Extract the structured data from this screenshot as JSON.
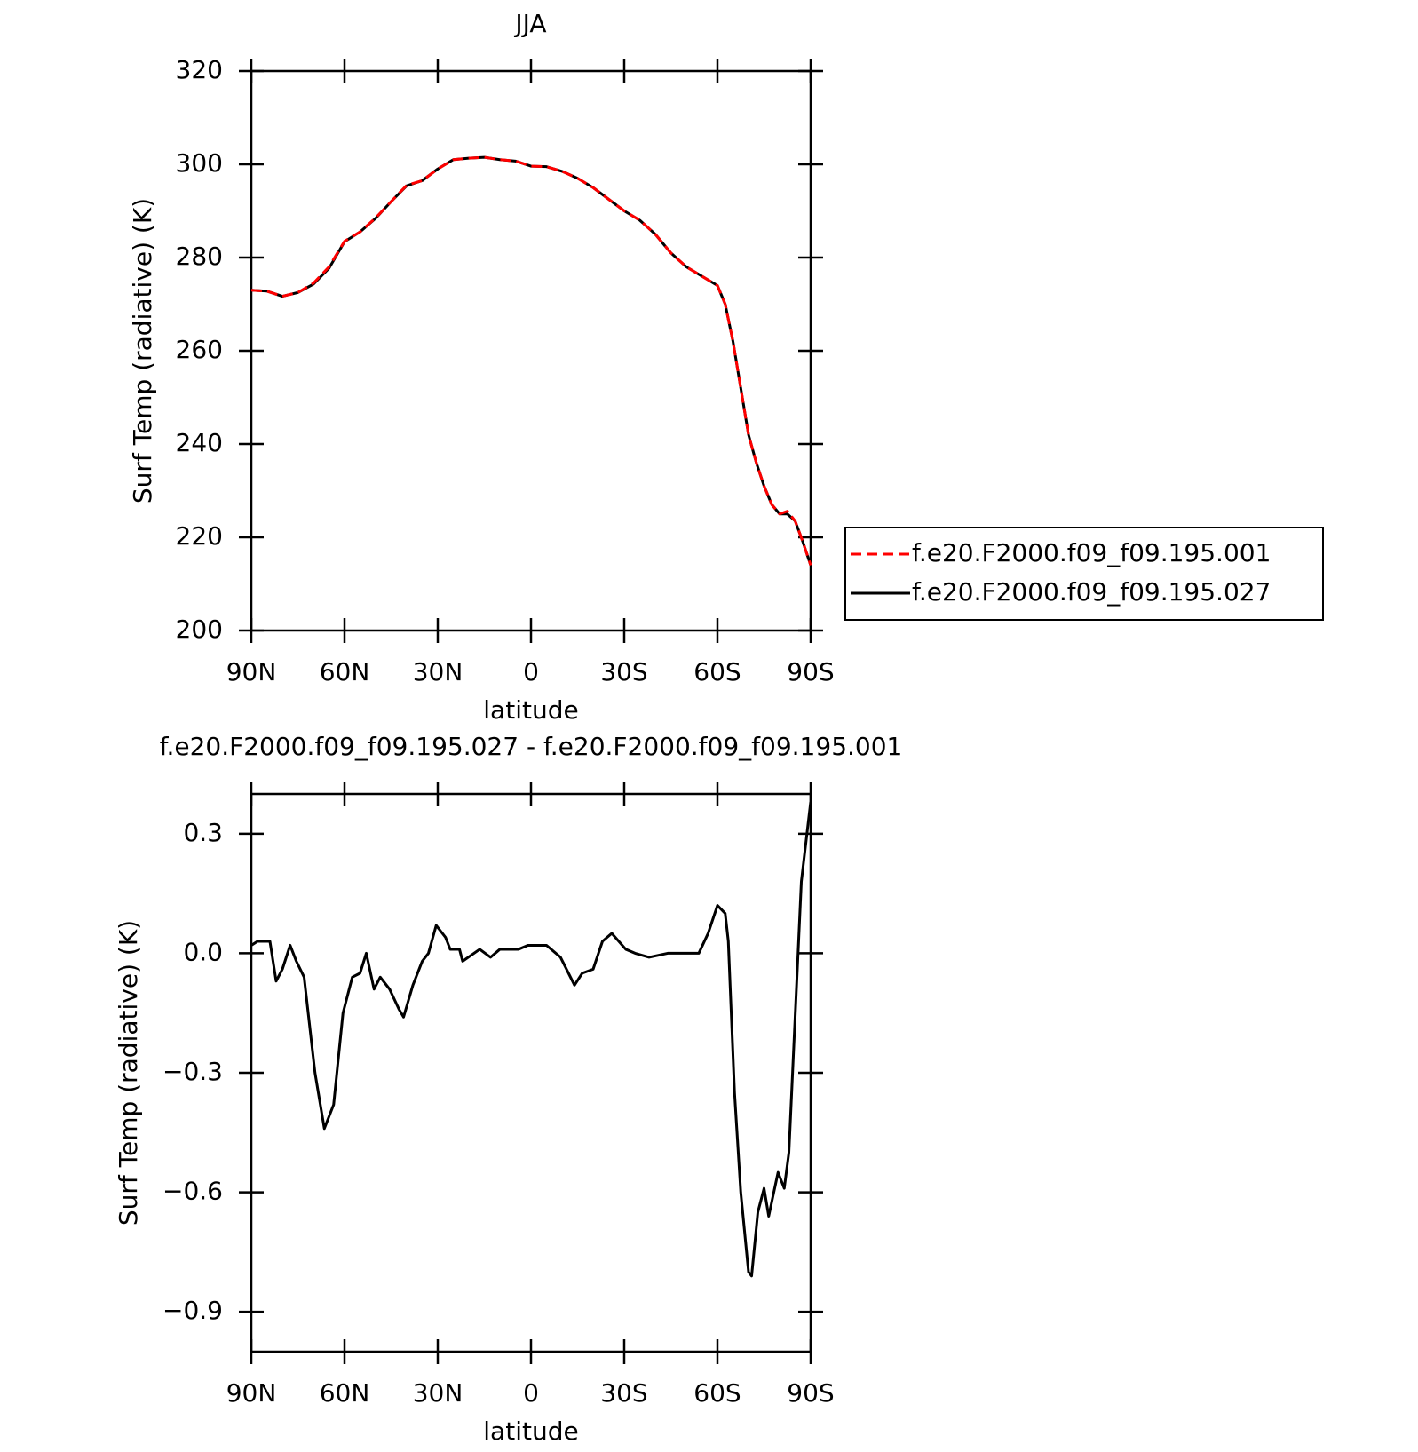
{
  "chart_data": [
    {
      "type": "line",
      "title": "JJA",
      "xlabel": "latitude",
      "ylabel": "Surf Temp (radiative) (K)",
      "x": [
        90,
        85,
        80,
        75,
        70,
        65,
        60,
        55,
        50,
        45,
        40,
        35,
        30,
        25,
        20,
        15,
        10,
        5,
        0,
        -5,
        -10,
        -15,
        -20,
        -25,
        -30,
        -35,
        -40,
        -45,
        -50,
        -55,
        -60,
        -62.5,
        -65,
        -67.5,
        -70,
        -72.5,
        -75,
        -77.5,
        -80,
        -82.5,
        -85,
        -87.5,
        -90
      ],
      "series": [
        {
          "name": "f.e20.F2000.f09_f09.195.001",
          "color": "#ff0000",
          "dash": "dashed",
          "values": [
            273,
            272.8,
            271.7,
            272.5,
            274.5,
            278,
            283.5,
            285.5,
            288.5,
            292,
            295.5,
            296.5,
            299,
            301,
            301.3,
            301.5,
            301,
            300.7,
            299.6,
            299.5,
            298.5,
            297,
            295,
            292.5,
            290,
            288,
            285,
            281,
            278,
            276,
            274,
            270,
            262,
            252,
            242,
            236,
            231,
            227,
            225,
            225.6,
            223.5,
            219,
            214
          ]
        },
        {
          "name": "f.e20.F2000.f09_f09.195.027",
          "color": "#000000",
          "dash": "solid",
          "values": [
            273,
            272.8,
            271.7,
            272.5,
            274.3,
            277.7,
            283.4,
            285.5,
            288.4,
            292,
            295.4,
            296.5,
            299,
            301,
            301.3,
            301.5,
            301,
            300.7,
            299.6,
            299.5,
            298.5,
            297,
            295,
            292.5,
            290,
            288,
            285,
            281,
            278,
            276,
            274,
            270,
            262,
            252,
            242,
            236,
            231,
            227,
            225,
            225,
            223.5,
            219,
            214
          ]
        }
      ],
      "xlim": [
        90,
        -90
      ],
      "xticks": [
        {
          "value": 90,
          "label": "90N"
        },
        {
          "value": 60,
          "label": "60N"
        },
        {
          "value": 30,
          "label": "30N"
        },
        0,
        {
          "value": -30,
          "label": "30S"
        },
        {
          "value": -60,
          "label": "60S"
        },
        {
          "value": -90,
          "label": "90S"
        }
      ],
      "ylim": [
        200,
        320
      ],
      "yticks": [
        200,
        220,
        240,
        260,
        280,
        300,
        320
      ],
      "legend": "right"
    },
    {
      "type": "line",
      "title": "f.e20.F2000.f09_f09.195.027 - f.e20.F2000.f09_f09.195.001",
      "xlabel": "latitude",
      "ylabel": "Surf Temp (radiative) (K)",
      "x": [
        90,
        88,
        84,
        82,
        80,
        77.5,
        75.5,
        73,
        69.5,
        66.5,
        63.5,
        60.5,
        57.5,
        55,
        53,
        50.5,
        48.5,
        45.5,
        42.5,
        41,
        38,
        35,
        33,
        30.5,
        27.5,
        26,
        23,
        22,
        16.5,
        13,
        10,
        4,
        1,
        -5,
        -9.5,
        -14,
        -16.5,
        -20,
        -23,
        -26,
        -30.5,
        -33.5,
        -38,
        -44,
        -50,
        -54,
        -57,
        -60,
        -62.5,
        -63.5,
        -65.5,
        -67.5,
        -70,
        -71,
        -73,
        -75,
        -76.5,
        -79.5,
        -81.5,
        -83,
        -87,
        -90
      ],
      "series": [
        {
          "color": "#000000",
          "dash": "solid",
          "values": [
            0.02,
            0.03,
            0.03,
            -0.07,
            -0.04,
            0.02,
            -0.02,
            -0.06,
            -0.3,
            -0.44,
            -0.38,
            -0.15,
            -0.06,
            -0.05,
            0.0,
            -0.09,
            -0.06,
            -0.09,
            -0.14,
            -0.16,
            -0.08,
            -0.02,
            0,
            0.07,
            0.04,
            0.01,
            0.01,
            -0.02,
            0.01,
            -0.01,
            0.01,
            0.01,
            0.02,
            0.02,
            -0.01,
            -0.08,
            -0.05,
            -0.04,
            0.03,
            0.05,
            0.01,
            0,
            -0.01,
            0,
            0,
            0,
            0.05,
            0.12,
            0.1,
            0.03,
            -0.35,
            -0.6,
            -0.8,
            -0.81,
            -0.65,
            -0.59,
            -0.66,
            -0.55,
            -0.59,
            -0.5,
            0.18,
            0.38
          ]
        }
      ],
      "xlim": [
        90,
        -90
      ],
      "xticks": [
        {
          "value": 90,
          "label": "90N"
        },
        {
          "value": 60,
          "label": "60N"
        },
        {
          "value": 30,
          "label": "30N"
        },
        0,
        {
          "value": -30,
          "label": "30S"
        },
        {
          "value": -60,
          "label": "60S"
        },
        {
          "value": -90,
          "label": "90S"
        }
      ],
      "ylim": [
        -1.0,
        0.4
      ],
      "yticks": [
        {
          "value": -0.9,
          "label": "−0.9"
        },
        {
          "value": -0.6,
          "label": "−0.6"
        },
        {
          "value": -0.3,
          "label": "−0.3"
        },
        {
          "value": 0,
          "label": "0.0"
        },
        0.3
      ]
    }
  ]
}
